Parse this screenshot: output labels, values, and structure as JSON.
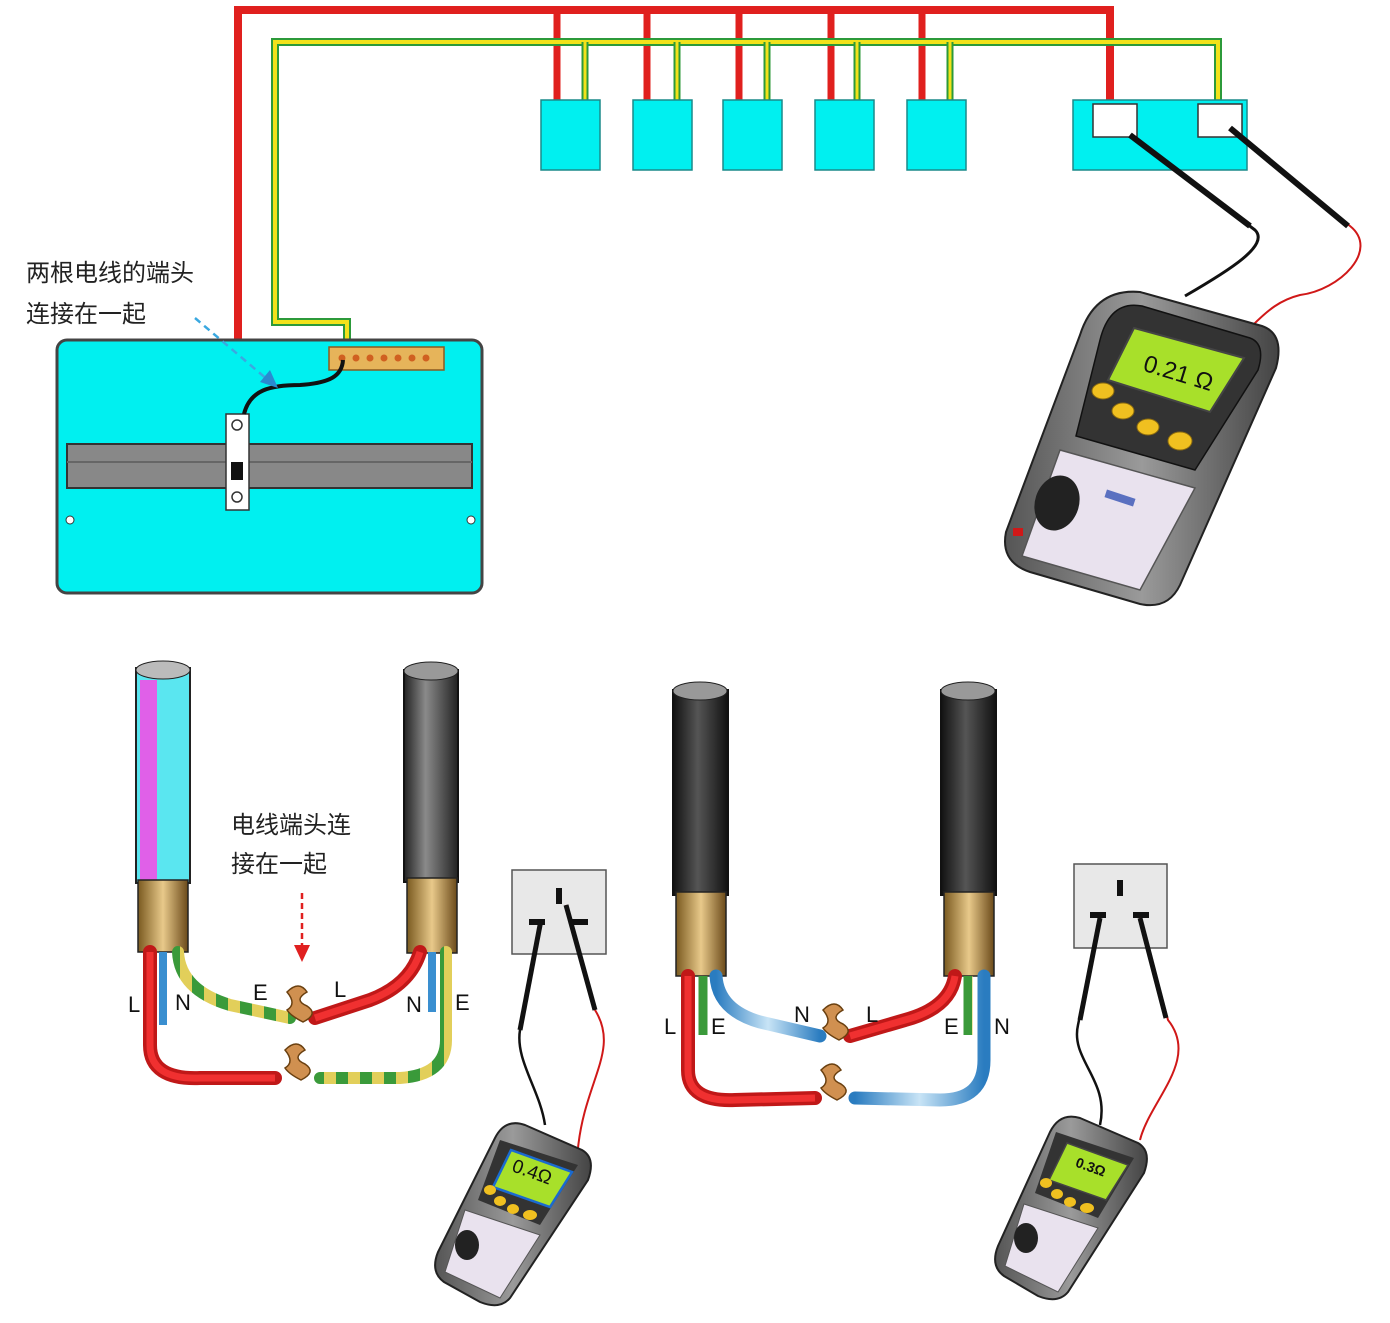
{
  "annotations": {
    "top_note_line1": "两根电线的端头",
    "top_note_line2": "连接在一起",
    "bottom_note_line1": "电线端头连",
    "bottom_note_line2": "接在一起"
  },
  "meters": {
    "top_reading": "0.21 Ω",
    "left_reading": "0.4Ω",
    "right_reading": "0.3Ω"
  },
  "terminal_labels": {
    "left_cable": {
      "L1": "L",
      "N1": "N",
      "E1": "E",
      "L2": "L",
      "N2": "N",
      "E2": "E"
    },
    "right_cable": {
      "L1": "L",
      "E1": "E",
      "N1": "N",
      "L2": "L",
      "E2": "E",
      "N2": "N"
    }
  },
  "colors": {
    "live": "#e0201e",
    "earth_green": "#2c9a3a",
    "earth_yellow": "#f2e21a",
    "neutral_blue": "#3a8fd0",
    "socket_cyan": "#00f0f0",
    "meter_screen": "#a8e02a"
  }
}
